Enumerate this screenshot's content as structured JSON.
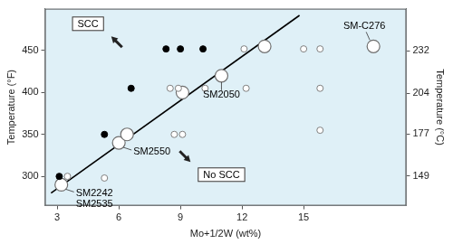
{
  "chart_data": {
    "type": "scatter",
    "x_label": "Mo+1/2W (wt%)",
    "y_label": "Temperature (°F)",
    "y2_label": "Temperature (°C)",
    "xlim": [
      2.4,
      20
    ],
    "xticks": [
      3,
      6,
      9,
      12,
      15
    ],
    "ylim": [
      265,
      500
    ],
    "yticks": [
      300,
      350,
      400,
      450
    ],
    "y2lim": [
      129.4,
      260
    ],
    "y2ticks": [
      149,
      177,
      204,
      232
    ],
    "grid": false,
    "series": [
      {
        "name": "SCC",
        "marker": "filled",
        "color": "#000000",
        "x": [
          3.1,
          5.3,
          6.6,
          8.3,
          9.0,
          10.1
        ],
        "values": [
          300,
          350,
          405,
          452,
          452,
          452
        ]
      },
      {
        "name": "No SCC",
        "marker": "open",
        "color": "#7f7f7f",
        "x": [
          3.5,
          5.3,
          8.5,
          8.9,
          8.7,
          9.1,
          10.2,
          12.1,
          12.2,
          15.0,
          15.8,
          15.8,
          15.8
        ],
        "values": [
          300,
          298,
          405,
          405,
          350,
          350,
          405,
          452,
          405,
          452,
          452,
          405,
          355
        ]
      },
      {
        "marker": "large open",
        "color": "#6f6f6f",
        "x": [
          3.2,
          6.0,
          6.4,
          9.1,
          11.0,
          13.1,
          18.4
        ],
        "values": [
          290,
          340,
          350,
          400,
          420,
          455,
          455
        ]
      },
      {
        "type": "line",
        "line_style": "solid",
        "color": "#000000",
        "x": [
          2.7,
          14.8
        ],
        "values": [
          280,
          492
        ]
      }
    ],
    "annotations": [
      {
        "text": "SCC",
        "kind": "box",
        "arrow": "up-left",
        "x": 4.5,
        "y": 482
      },
      {
        "text": "No SCC",
        "kind": "box",
        "arrow": "down-right",
        "x": 11.0,
        "y": 302
      },
      {
        "text": [
          "SM2242",
          "SM2535"
        ],
        "kind": "label",
        "position": "below-right",
        "x": 3.2,
        "y": 290
      },
      {
        "text": [
          "SM2550"
        ],
        "kind": "label",
        "position": "below-right",
        "x": 6.0,
        "y": 340
      },
      {
        "text": [
          "SM2050"
        ],
        "kind": "label",
        "position": "below",
        "x": 11.0,
        "y": 420
      },
      {
        "text": [
          "SM-C276"
        ],
        "kind": "label",
        "position": "above",
        "x": 18.4,
        "y": 455
      }
    ]
  }
}
